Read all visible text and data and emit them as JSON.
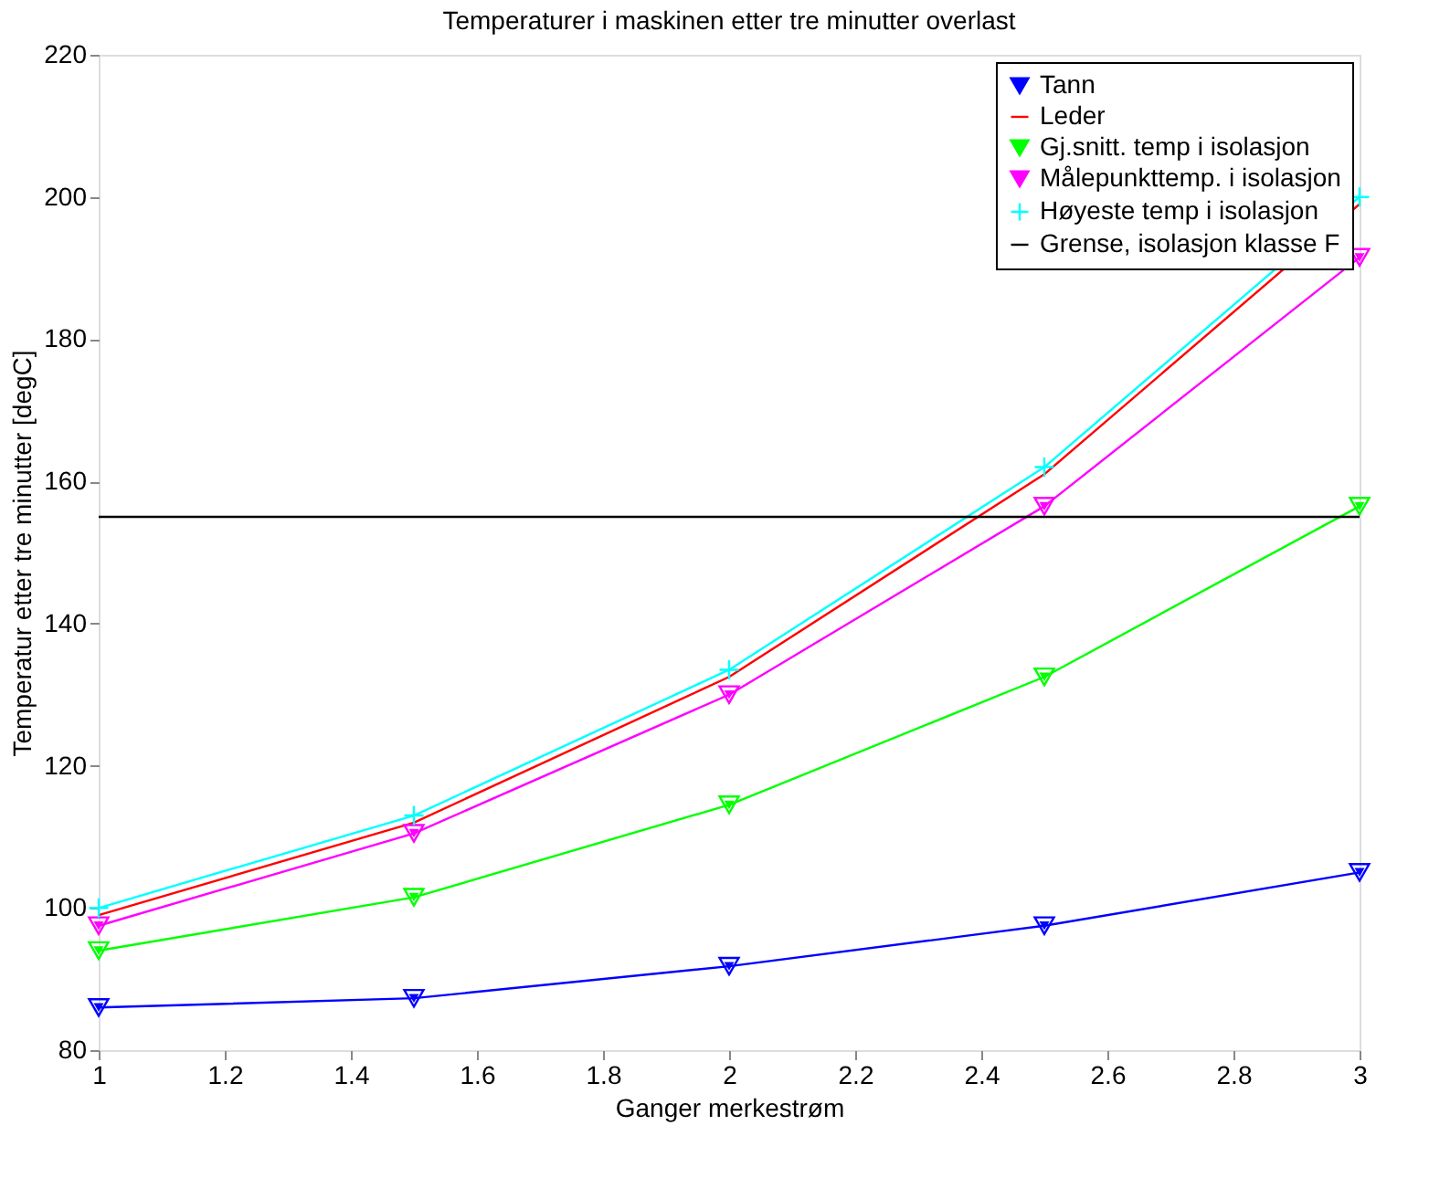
{
  "chart_data": {
    "type": "line",
    "title": "Temperaturer i maskinen etter tre minutter overlast",
    "xlabel": "Ganger merkestrøm",
    "ylabel": "Temperatur etter tre minutter [degC]",
    "x": [
      1,
      1.5,
      2,
      2.5,
      3
    ],
    "series": [
      {
        "name": "Tann",
        "color": "#0000ff",
        "marker": "triangle",
        "values": [
          86,
          87.3,
          91.8,
          97.5,
          105
        ]
      },
      {
        "name": "Leder",
        "color": "#ff0000",
        "marker": "none",
        "values": [
          99,
          112,
          132.5,
          161,
          199
        ]
      },
      {
        "name": "Gj.snitt. temp i isolasjon",
        "color": "#00ff00",
        "marker": "triangle",
        "values": [
          94,
          101.5,
          114.5,
          132.5,
          156.5
        ]
      },
      {
        "name": "Målepunkttemp. i isolasjon",
        "color": "#ff00ff",
        "marker": "triangle",
        "values": [
          97.5,
          110.5,
          130,
          156.5,
          191.5
        ]
      },
      {
        "name": "Høyeste temp i isolasjon",
        "color": "#00ffff",
        "marker": "cross",
        "values": [
          100,
          113,
          133.5,
          162,
          200
        ]
      }
    ],
    "ref_lines": [
      {
        "axis": "y",
        "value": 155,
        "label": "Grense, isolasjon klasse F",
        "color": "#000000"
      }
    ],
    "xlim": [
      1,
      3
    ],
    "xticks": [
      1,
      1.2,
      1.4,
      1.6,
      1.8,
      2,
      2.2,
      2.4,
      2.6,
      2.8,
      3
    ],
    "ylim": [
      80,
      220
    ],
    "yticks": [
      80,
      100,
      120,
      140,
      160,
      180,
      200,
      220
    ],
    "grid": false,
    "legend": "top right",
    "line_style": "solid"
  }
}
